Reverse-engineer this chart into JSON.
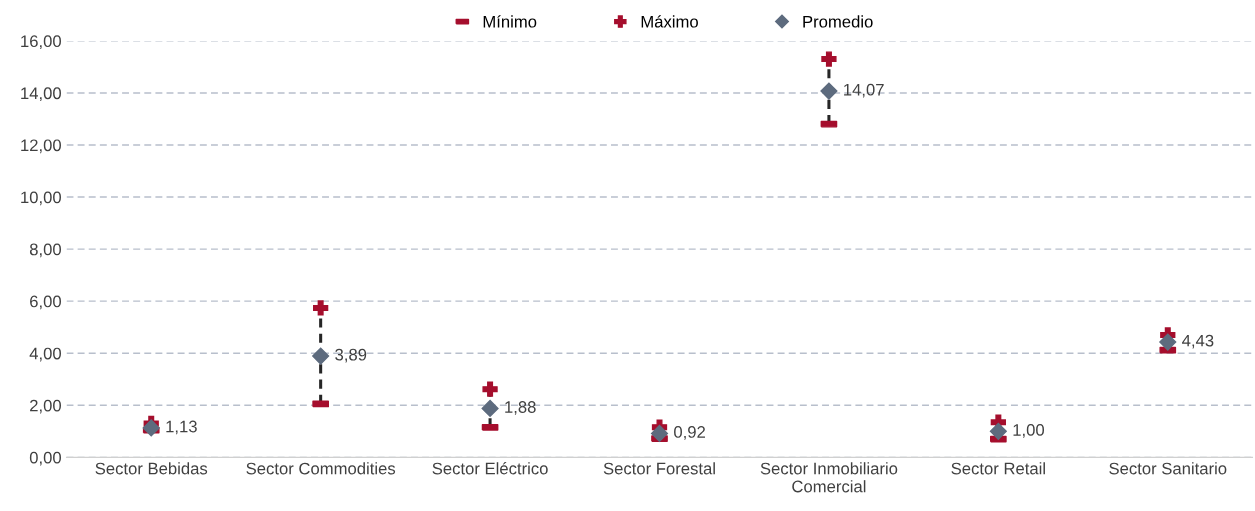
{
  "chart_data": {
    "type": "scatter",
    "categories": [
      "Sector Bebidas",
      "Sector Commodities",
      "Sector Eléctrico",
      "Sector Forestal",
      "Sector Inmobiliario\nComercial",
      "Sector Retail",
      "Sector Sanitario"
    ],
    "series": [
      {
        "name": "Mínimo",
        "color": "#a50e2d",
        "marker": "square",
        "values": [
          1.05,
          2.05,
          1.15,
          0.72,
          12.8,
          0.7,
          4.12
        ]
      },
      {
        "name": "Máximo",
        "color": "#a50e2d",
        "marker": "cross",
        "values": [
          1.3,
          5.74,
          2.62,
          1.16,
          15.3,
          1.35,
          4.7
        ]
      },
      {
        "name": "Promedio",
        "color": "#5d6b7e",
        "marker": "diamond",
        "values": [
          1.13,
          3.89,
          1.88,
          0.92,
          14.07,
          1.0,
          4.43
        ],
        "value_labels": [
          "1,13",
          "3,89",
          "1,88",
          "0,92",
          "14,07",
          "1,00",
          "4,43"
        ]
      }
    ],
    "ylim": [
      0,
      16
    ],
    "yticks": [
      {
        "value": 0,
        "label": "0,00"
      },
      {
        "value": 2,
        "label": "2,00"
      },
      {
        "value": 4,
        "label": "4,00"
      },
      {
        "value": 6,
        "label": "6,00"
      },
      {
        "value": 8,
        "label": "8,00"
      },
      {
        "value": 10,
        "label": "10,00"
      },
      {
        "value": 12,
        "label": "12,00"
      },
      {
        "value": 14,
        "label": "14,00"
      },
      {
        "value": 16,
        "label": "16,00"
      }
    ],
    "grid": "y",
    "legend": "top"
  }
}
